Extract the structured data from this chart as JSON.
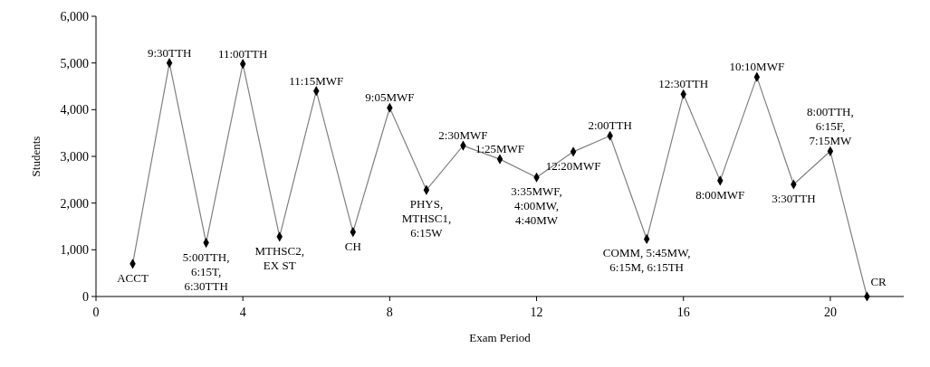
{
  "chart_data": {
    "type": "line",
    "xlabel": "Exam Period",
    "ylabel": "Students",
    "x": [
      1,
      2,
      3,
      4,
      5,
      6,
      7,
      8,
      9,
      10,
      11,
      12,
      13,
      14,
      15,
      16,
      17,
      18,
      19,
      20,
      21
    ],
    "series": [
      {
        "color": "#808080",
        "values": [
          700,
          5000,
          1150,
          4980,
          1280,
          4400,
          1380,
          4040,
          2280,
          3230,
          2940,
          2550,
          3100,
          3440,
          1230,
          4330,
          2480,
          4700,
          2400,
          3110,
          0
        ]
      }
    ],
    "marker": "diamond",
    "line_style": "solid",
    "xlim": [
      0,
      22
    ],
    "xticks": [
      0,
      4,
      8,
      12,
      16,
      20
    ],
    "ylim": [
      0,
      6000
    ],
    "yticks": [
      0,
      {
        "value": 1000,
        "label": "1,000"
      },
      {
        "value": 2000,
        "label": "2,000"
      },
      {
        "value": 3000,
        "label": "3,000"
      },
      {
        "value": 4000,
        "label": "4,000"
      },
      {
        "value": 5000,
        "label": "5,000"
      },
      {
        "value": 6000,
        "label": "6,000"
      }
    ],
    "annotations": [
      {
        "text": "ACCT",
        "x": 1,
        "y": 700
      },
      {
        "text": "9:30TTH",
        "x": 2,
        "y": 5000
      },
      {
        "text": "5:00TTH,\n6:15T,\n6:30TTH",
        "x": 3,
        "y": 1150
      },
      {
        "text": "11:00TTH",
        "x": 4,
        "y": 4980
      },
      {
        "text": "MTHSC2,\nEX ST",
        "x": 5,
        "y": 1280
      },
      {
        "text": "11:15MWF",
        "x": 6,
        "y": 4400
      },
      {
        "text": "CH",
        "x": 7,
        "y": 1380
      },
      {
        "text": "9:05MWF",
        "x": 8,
        "y": 4040
      },
      {
        "text": "PHYS,\nMTHSC1,\n6:15W",
        "x": 9,
        "y": 2280
      },
      {
        "text": "2:30MWF",
        "x": 10,
        "y": 3230
      },
      {
        "text": "1:25MWF",
        "x": 11,
        "y": 2940
      },
      {
        "text": "3:35MWF,\n4:00MW,\n4:40MW",
        "x": 12,
        "y": 2550
      },
      {
        "text": "12:20MWF",
        "x": 13,
        "y": 3100
      },
      {
        "text": "2:00TTH",
        "x": 14,
        "y": 3440
      },
      {
        "text": "COMM, 5:45MW,\n6:15M, 6:15TH",
        "x": 15,
        "y": 1230
      },
      {
        "text": "12:30TTH",
        "x": 16,
        "y": 4330
      },
      {
        "text": "8:00MWF",
        "x": 17,
        "y": 2480
      },
      {
        "text": "10:10MWF",
        "x": 18,
        "y": 4700
      },
      {
        "text": "3:30TTH",
        "x": 19,
        "y": 2400
      },
      {
        "text": "8:00TTH,\n6:15F,\n7:15MW",
        "x": 20,
        "y": 3110
      },
      {
        "text": "CR",
        "x": 21,
        "y": 0
      }
    ]
  }
}
